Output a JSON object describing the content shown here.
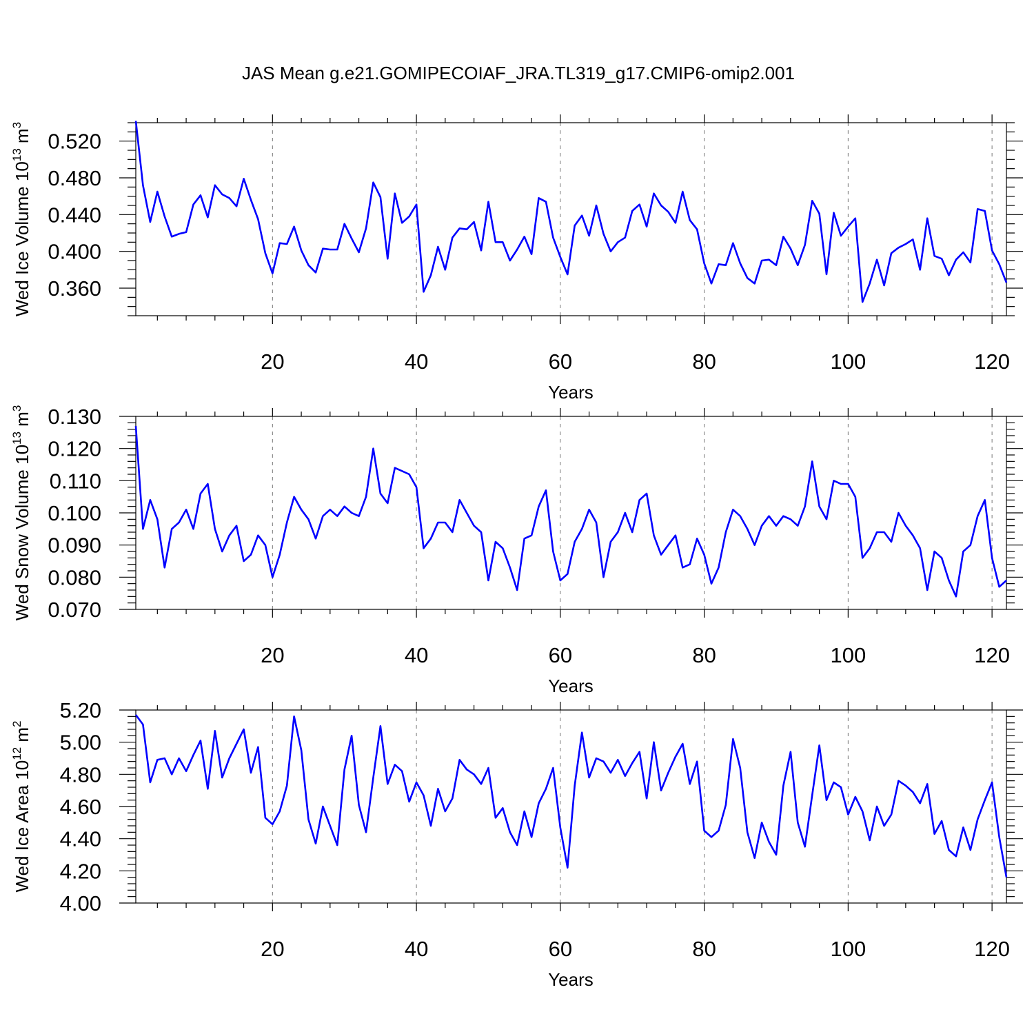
{
  "figure": {
    "title": "JAS Mean g.e21.GOMIPECOIAF_JRA.TL319_g17.CMIP6-omip2.001",
    "line_color": "#0000ff"
  },
  "chart_data": [
    {
      "type": "line",
      "xlabel": "Years",
      "ylabel": "Wed Ice Volume 10",
      "ylabel_exp": "13",
      "ylabel_unit": "m",
      "ylabel_unit_exp": "3",
      "xlim": [
        1,
        122
      ],
      "ylim": [
        0.33,
        0.54
      ],
      "x_ticks": [
        20,
        40,
        60,
        80,
        100,
        120
      ],
      "y_ticks": [
        0.36,
        0.4,
        0.44,
        0.48,
        0.52
      ],
      "y_tick_labels": [
        "0.360",
        "0.400",
        "0.440",
        "0.480",
        "0.520"
      ],
      "x_minor_step": 4,
      "y_minor_step": 0.01,
      "grid": "vertical dashed at major x ticks",
      "series": [
        {
          "color": "#0000ff",
          "values": [
            0.542,
            0.472,
            0.432,
            0.465,
            0.438,
            0.416,
            0.419,
            0.421,
            0.451,
            0.461,
            0.437,
            0.472,
            0.462,
            0.458,
            0.449,
            0.479,
            0.456,
            0.435,
            0.398,
            0.376,
            0.409,
            0.408,
            0.427,
            0.401,
            0.385,
            0.377,
            0.403,
            0.402,
            0.402,
            0.43,
            0.414,
            0.399,
            0.425,
            0.475,
            0.459,
            0.392,
            0.463,
            0.431,
            0.438,
            0.451,
            0.356,
            0.374,
            0.405,
            0.38,
            0.415,
            0.425,
            0.424,
            0.432,
            0.401,
            0.454,
            0.41,
            0.41,
            0.39,
            0.402,
            0.416,
            0.397,
            0.458,
            0.454,
            0.415,
            0.394,
            0.375,
            0.428,
            0.439,
            0.417,
            0.45,
            0.419,
            0.4,
            0.41,
            0.415,
            0.444,
            0.451,
            0.427,
            0.463,
            0.45,
            0.443,
            0.431,
            0.465,
            0.434,
            0.424,
            0.387,
            0.365,
            0.386,
            0.385,
            0.409,
            0.387,
            0.371,
            0.365,
            0.39,
            0.391,
            0.385,
            0.416,
            0.403,
            0.385,
            0.407,
            0.455,
            0.441,
            0.375,
            0.442,
            0.417,
            0.427,
            0.436,
            0.345,
            0.365,
            0.391,
            0.363,
            0.398,
            0.404,
            0.408,
            0.413,
            0.38,
            0.436,
            0.395,
            0.392,
            0.374,
            0.391,
            0.399,
            0.388,
            0.446,
            0.444,
            0.401,
            0.386,
            0.366
          ]
        }
      ]
    },
    {
      "type": "line",
      "xlabel": "Years",
      "ylabel": "Wed Snow Volume 10",
      "ylabel_exp": "13",
      "ylabel_unit": "m",
      "ylabel_unit_exp": "3",
      "xlim": [
        1,
        122
      ],
      "ylim": [
        0.07,
        0.13
      ],
      "x_ticks": [
        20,
        40,
        60,
        80,
        100,
        120
      ],
      "y_ticks": [
        0.07,
        0.08,
        0.09,
        0.1,
        0.11,
        0.12,
        0.13
      ],
      "y_tick_labels": [
        "0.070",
        "0.080",
        "0.090",
        "0.100",
        "0.110",
        "0.120",
        "0.130"
      ],
      "x_minor_step": 4,
      "y_minor_step": 0.002,
      "grid": "vertical dashed at major x ticks",
      "series": [
        {
          "color": "#0000ff",
          "values": [
            0.127,
            0.095,
            0.104,
            0.098,
            0.083,
            0.095,
            0.097,
            0.101,
            0.095,
            0.106,
            0.109,
            0.095,
            0.088,
            0.093,
            0.096,
            0.085,
            0.087,
            0.093,
            0.09,
            0.08,
            0.087,
            0.097,
            0.105,
            0.101,
            0.098,
            0.092,
            0.099,
            0.101,
            0.099,
            0.102,
            0.1,
            0.099,
            0.105,
            0.12,
            0.106,
            0.103,
            0.114,
            0.113,
            0.112,
            0.108,
            0.089,
            0.092,
            0.097,
            0.097,
            0.094,
            0.104,
            0.1,
            0.096,
            0.094,
            0.079,
            0.091,
            0.089,
            0.083,
            0.076,
            0.092,
            0.093,
            0.102,
            0.107,
            0.088,
            0.079,
            0.081,
            0.091,
            0.095,
            0.101,
            0.097,
            0.08,
            0.091,
            0.094,
            0.1,
            0.094,
            0.104,
            0.106,
            0.093,
            0.087,
            0.09,
            0.093,
            0.083,
            0.084,
            0.092,
            0.087,
            0.078,
            0.083,
            0.094,
            0.101,
            0.099,
            0.095,
            0.09,
            0.096,
            0.099,
            0.096,
            0.099,
            0.098,
            0.096,
            0.102,
            0.116,
            0.102,
            0.098,
            0.11,
            0.109,
            0.109,
            0.105,
            0.086,
            0.089,
            0.094,
            0.094,
            0.091,
            0.1,
            0.096,
            0.093,
            0.089,
            0.076,
            0.088,
            0.086,
            0.079,
            0.074,
            0.088,
            0.09,
            0.099,
            0.104,
            0.086,
            0.077,
            0.079
          ]
        }
      ]
    },
    {
      "type": "line",
      "xlabel": "Years",
      "ylabel": "Wed Ice Area 10",
      "ylabel_exp": "12",
      "ylabel_unit": "m",
      "ylabel_unit_exp": "2",
      "xlim": [
        1,
        122
      ],
      "ylim": [
        4.0,
        5.2
      ],
      "x_ticks": [
        20,
        40,
        60,
        80,
        100,
        120
      ],
      "y_ticks": [
        4.0,
        4.2,
        4.4,
        4.6,
        4.8,
        5.0,
        5.2
      ],
      "y_tick_labels": [
        "4.00",
        "4.20",
        "4.40",
        "4.60",
        "4.80",
        "5.00",
        "5.20"
      ],
      "x_minor_step": 4,
      "y_minor_step": 0.04,
      "grid": "vertical dashed at major x ticks",
      "series": [
        {
          "color": "#0000ff",
          "values": [
            5.17,
            5.11,
            4.75,
            4.89,
            4.9,
            4.8,
            4.9,
            4.82,
            4.92,
            5.01,
            4.71,
            5.07,
            4.78,
            4.9,
            4.99,
            5.08,
            4.81,
            4.97,
            4.53,
            4.49,
            4.57,
            4.73,
            5.16,
            4.95,
            4.52,
            4.37,
            4.6,
            4.48,
            4.36,
            4.83,
            5.04,
            4.61,
            4.44,
            4.78,
            5.1,
            4.74,
            4.86,
            4.82,
            4.63,
            4.75,
            4.67,
            4.48,
            4.71,
            4.57,
            4.65,
            4.89,
            4.83,
            4.8,
            4.74,
            4.84,
            4.53,
            4.59,
            4.44,
            4.36,
            4.57,
            4.41,
            4.62,
            4.71,
            4.84,
            4.47,
            4.22,
            4.73,
            5.06,
            4.78,
            4.9,
            4.88,
            4.81,
            4.89,
            4.79,
            4.87,
            4.94,
            4.65,
            5.0,
            4.7,
            4.81,
            4.91,
            4.99,
            4.74,
            4.88,
            4.45,
            4.41,
            4.45,
            4.61,
            5.02,
            4.84,
            4.44,
            4.28,
            4.5,
            4.38,
            4.3,
            4.73,
            4.94,
            4.5,
            4.35,
            4.67,
            4.98,
            4.64,
            4.75,
            4.72,
            4.55,
            4.66,
            4.57,
            4.39,
            4.6,
            4.48,
            4.55,
            4.76,
            4.73,
            4.69,
            4.62,
            4.74,
            4.43,
            4.51,
            4.33,
            4.29,
            4.47,
            4.33,
            4.52,
            4.64,
            4.75,
            4.41,
            4.16
          ]
        }
      ]
    }
  ]
}
